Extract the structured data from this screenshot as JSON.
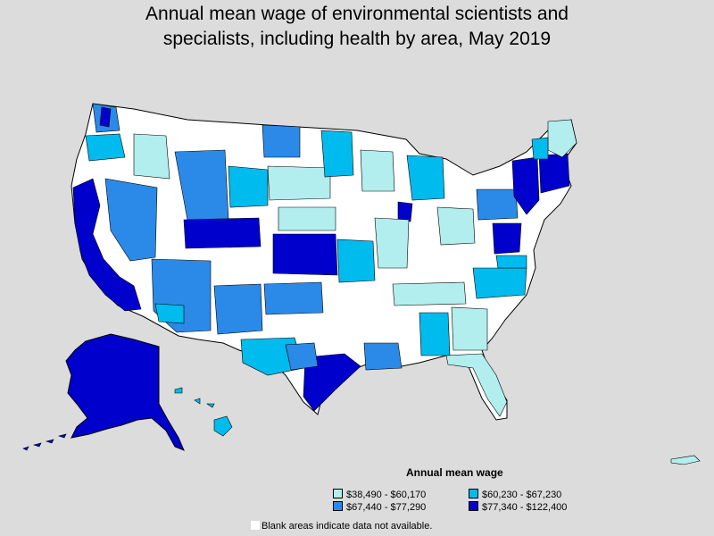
{
  "title_line1": "Annual mean wage of environmental scientists and",
  "title_line2": "specialists, including health by area, May 2019",
  "legend": {
    "title": "Annual mean wage",
    "items": [
      {
        "label": "$38,490 - $60,170",
        "color": "#b2eeee"
      },
      {
        "label": "$60,230 - $67,230",
        "color": "#00bbee"
      },
      {
        "label": "$67,440 - $77,290",
        "color": "#2b8ae8"
      },
      {
        "label": "$77,340 - $122,400",
        "color": "#0000cc"
      }
    ]
  },
  "note": "Blank areas indicate data not available.",
  "colors": {
    "background": "#dcdcdc",
    "blank": "#ffffff",
    "border": "#000000"
  }
}
